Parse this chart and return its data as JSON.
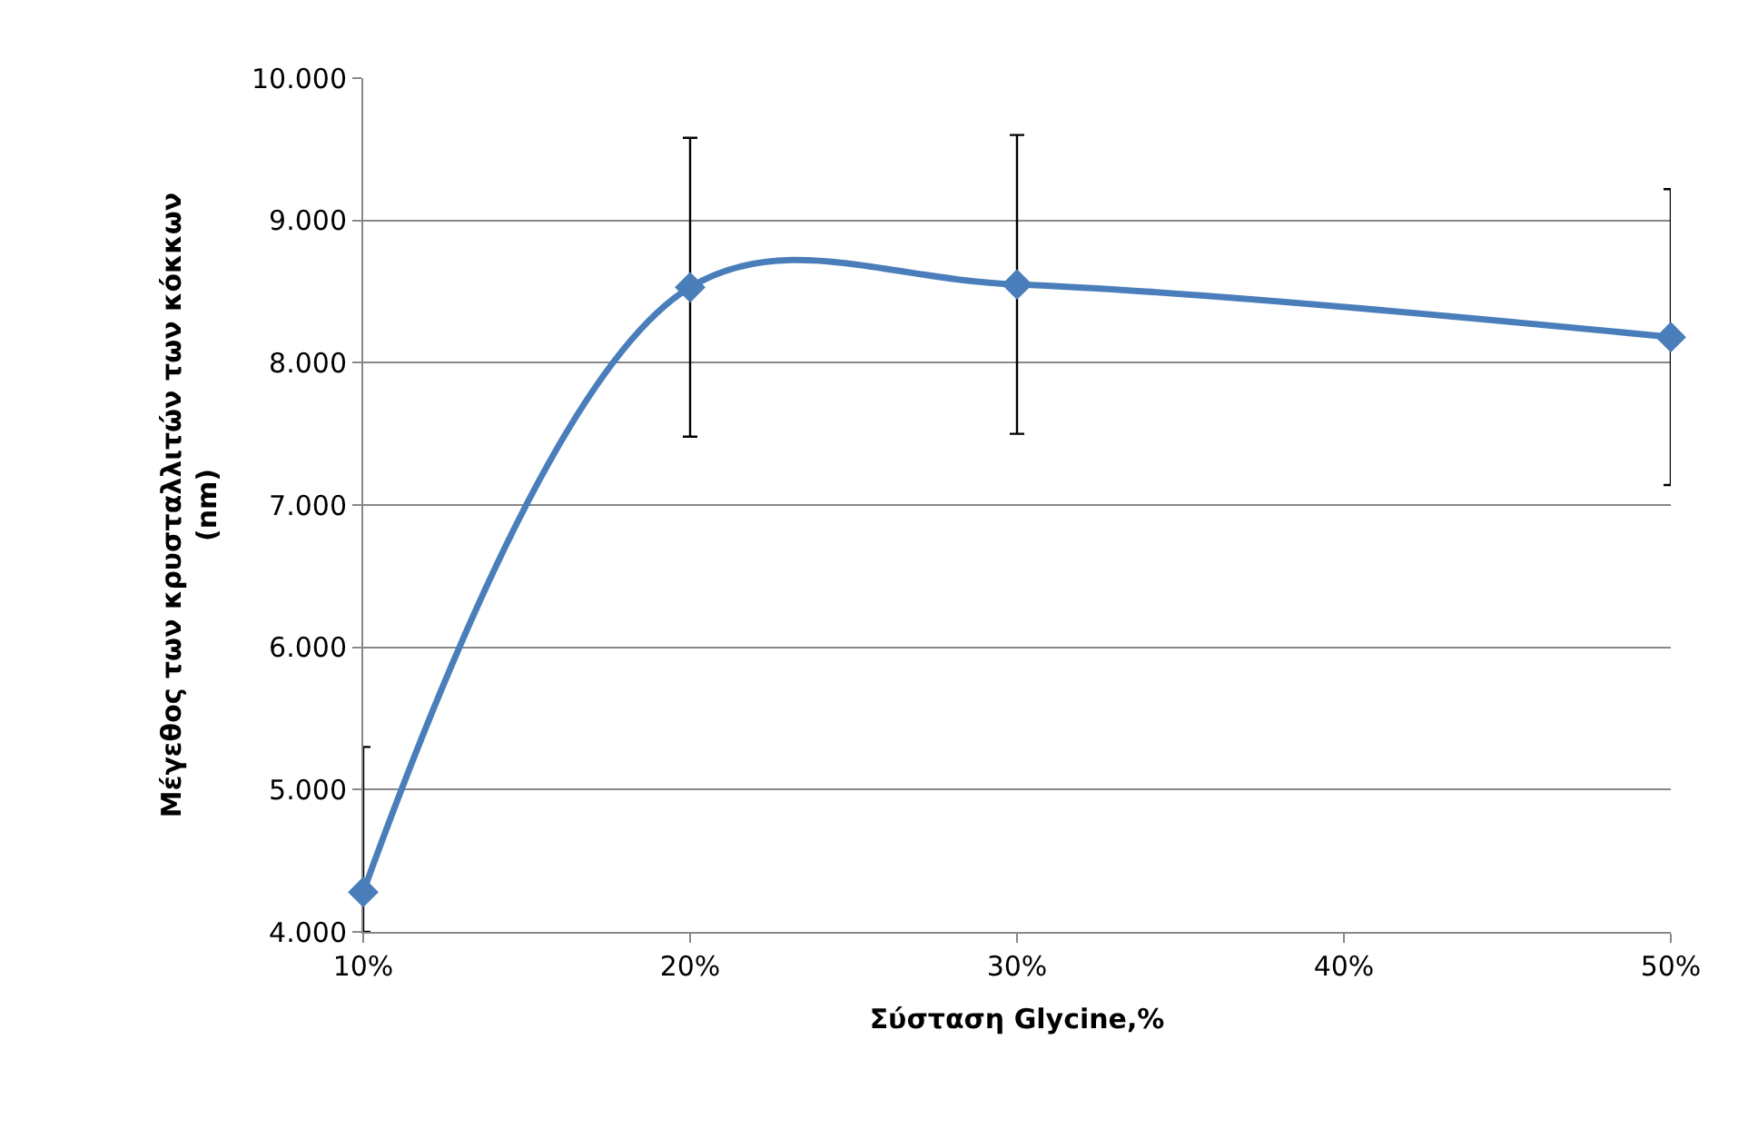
{
  "chart_data": {
    "type": "line",
    "xlabel": "Σύσταση Glycine,%",
    "ylabel": "Μέγεθος των κρυσταλλιτών των κόκκων (nm)",
    "x": [
      10,
      20,
      30,
      50
    ],
    "series": [
      {
        "color": "#4a7ebb",
        "values": [
          4.28,
          8.53,
          8.55,
          8.18
        ],
        "errors": [
          [
            4.0,
            5.3
          ],
          1.05,
          1.05,
          1.04
        ]
      }
    ],
    "xlim": [
      10,
      50
    ],
    "xticks": [
      {
        "value": 10,
        "label": "10%"
      },
      {
        "value": 20,
        "label": "20%"
      },
      {
        "value": 30,
        "label": "30%"
      },
      {
        "value": 40,
        "label": "40%"
      },
      {
        "value": 50,
        "label": "50%"
      }
    ],
    "ylim": [
      4,
      10
    ],
    "yticks": [
      {
        "value": 4,
        "label": "4.000"
      },
      {
        "value": 5,
        "label": "5.000"
      },
      {
        "value": 6,
        "label": "6.000"
      },
      {
        "value": 7,
        "label": "7.000"
      },
      {
        "value": 8,
        "label": "8.000"
      },
      {
        "value": 9,
        "label": "9.000"
      },
      {
        "value": 10,
        "label": "10.000"
      }
    ],
    "grid": "y",
    "marker": "diamond",
    "line_style": "solid",
    "legend": false
  }
}
